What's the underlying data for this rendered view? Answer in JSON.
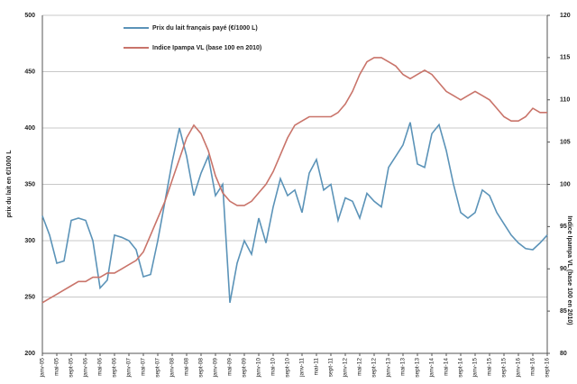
{
  "chart_data": {
    "type": "line",
    "legend": "top-left",
    "grid": true,
    "ylabel": "prix du lait en €/1000 L",
    "y2label": "Indice Ipampa VL (base 100 en 2010)",
    "categories": [
      "janv-05",
      null,
      "mai-05",
      null,
      "sept-05",
      null,
      "janv-06",
      null,
      "mai-06",
      null,
      "sept-06",
      null,
      "janv-07",
      null,
      "mai-07",
      null,
      "sept-07",
      null,
      "janv-08",
      null,
      "mai-08",
      null,
      "sept-08",
      null,
      "janv-09",
      null,
      "mai-09",
      null,
      "sept-09",
      null,
      "janv-10",
      null,
      "mai-10",
      null,
      "sept-10",
      null,
      "janv-11",
      null,
      "mai-11",
      null,
      "sept-11",
      null,
      "janv-12",
      null,
      "mai-12",
      null,
      "sept-12",
      null,
      "janv-13",
      null,
      "mai-13",
      null,
      "sept-13",
      null,
      "janv-14",
      null,
      "mai-14",
      null,
      "sept-14",
      null,
      "janv-15",
      null,
      "mai-15",
      null,
      "sept-15",
      null,
      "janv-16",
      null,
      "mai-16",
      null,
      "sept-16"
    ],
    "series": [
      {
        "name": "Prix du lait français payé (€/1000 L)",
        "color": "#5b93b8",
        "values": [
          322,
          305,
          280,
          282,
          318,
          320,
          318,
          300,
          258,
          265,
          305,
          303,
          300,
          292,
          268,
          270,
          300,
          335,
          370,
          400,
          375,
          340,
          360,
          375,
          340,
          350,
          245,
          280,
          300,
          288,
          320,
          298,
          330,
          355,
          340,
          345,
          325,
          360,
          372,
          345,
          350,
          318,
          338,
          335,
          320,
          342,
          335,
          330,
          365,
          375,
          385,
          405,
          368,
          365,
          395,
          403,
          380,
          350,
          325,
          320,
          325,
          345,
          340,
          325,
          315,
          305,
          298,
          293,
          292,
          298,
          305
        ]
      },
      {
        "name": "Indice Ipampa VL (base 100 en 2010)",
        "color": "#c9746a",
        "axis": "y2",
        "values": [
          86,
          86.5,
          87,
          87.5,
          88,
          88.5,
          88.5,
          89,
          89,
          89.5,
          89.5,
          90,
          90.5,
          91,
          92,
          94,
          96,
          98,
          100.5,
          103,
          105.5,
          107,
          106,
          104,
          101,
          99,
          98,
          97.5,
          97.5,
          98,
          99,
          100,
          101.5,
          103.5,
          105.5,
          107,
          107.5,
          108,
          108,
          108,
          108,
          108.5,
          109.5,
          111,
          113,
          114.5,
          115,
          115,
          114.5,
          114,
          113,
          112.5,
          113,
          113.5,
          113,
          112,
          111,
          110.5,
          110,
          110.5,
          111,
          110.5,
          110,
          109,
          108,
          107.5,
          107.5,
          108,
          109,
          108.5,
          108.5
        ]
      }
    ],
    "ylim": [
      200,
      500
    ],
    "yticks": [
      200,
      250,
      300,
      350,
      400,
      450,
      500
    ],
    "y2lim": [
      80,
      120
    ],
    "y2ticks": [
      80,
      85,
      90,
      95,
      100,
      105,
      110,
      115,
      120
    ]
  }
}
